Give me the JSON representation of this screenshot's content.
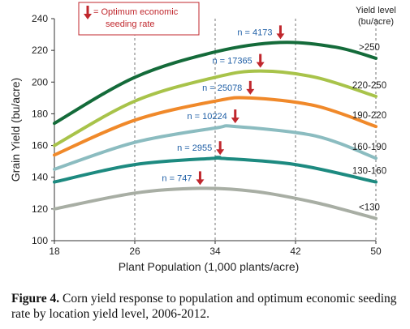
{
  "chart_data": {
    "type": "line",
    "xlabel": "Plant Population (1,000 plants/acre)",
    "ylabel": "Grain Yield (bu/acre)",
    "xlim": [
      18,
      50
    ],
    "ylim": [
      100,
      240
    ],
    "xticks": [
      18,
      26,
      34,
      42,
      50
    ],
    "yticks": [
      100,
      120,
      140,
      160,
      180,
      200,
      220,
      240
    ],
    "grid": "vertical",
    "legend": {
      "text_line1": "= Optimum economic",
      "text_line2": "seeding rate",
      "placement": "top-left"
    },
    "series_title_line1": "Yield level",
    "series_title_line2": "(bu/acre)",
    "series": [
      {
        "name": ">250",
        "color": "#146b3a",
        "x": [
          18,
          26,
          34,
          40.5,
          46,
          50
        ],
        "y": [
          174,
          203,
          219,
          225,
          222,
          215
        ],
        "optimum_x": 40.5,
        "n_label": "n = 4173"
      },
      {
        "name": "220-250",
        "color": "#a8c34a",
        "x": [
          18,
          26,
          34,
          38.5,
          44,
          50
        ],
        "y": [
          160,
          188,
          203,
          207,
          203,
          191
        ],
        "optimum_x": 38.5,
        "n_label": "n = 17365"
      },
      {
        "name": "190-220",
        "color": "#f0892a",
        "x": [
          18,
          26,
          34,
          37.5,
          44,
          50
        ],
        "y": [
          154,
          176,
          188,
          190,
          185,
          172
        ],
        "optimum_x": 37.5,
        "n_label": "n = 25078"
      },
      {
        "name": "160-190",
        "color": "#8bbcc0",
        "x": [
          18,
          26,
          34,
          36,
          44,
          50
        ],
        "y": [
          145,
          162,
          171,
          172,
          166,
          152
        ],
        "optimum_x": 36,
        "n_label": "n = 10224"
      },
      {
        "name": "130-160",
        "color": "#1d8a80",
        "x": [
          18,
          26,
          34,
          34.5,
          42,
          50
        ],
        "y": [
          137,
          148,
          152,
          152,
          148,
          137
        ],
        "optimum_x": 34.5,
        "n_label": "n = 2955"
      },
      {
        "name": "<130",
        "color": "#a8aea4",
        "x": [
          18,
          26,
          32.5,
          38,
          44,
          50
        ],
        "y": [
          120,
          130,
          133,
          131,
          124,
          114
        ],
        "optimum_x": 32.5,
        "n_label": "n = 747"
      }
    ]
  },
  "caption": {
    "label": "Figure 4.",
    "text": " Corn yield response to population and optimum economic seeding rate by location yield level, 2006-2012."
  },
  "colors": {
    "marker": "#c0272d",
    "legend_border": "#c0272d",
    "n_text": "#1f5fa6",
    "grid": "#555555"
  }
}
